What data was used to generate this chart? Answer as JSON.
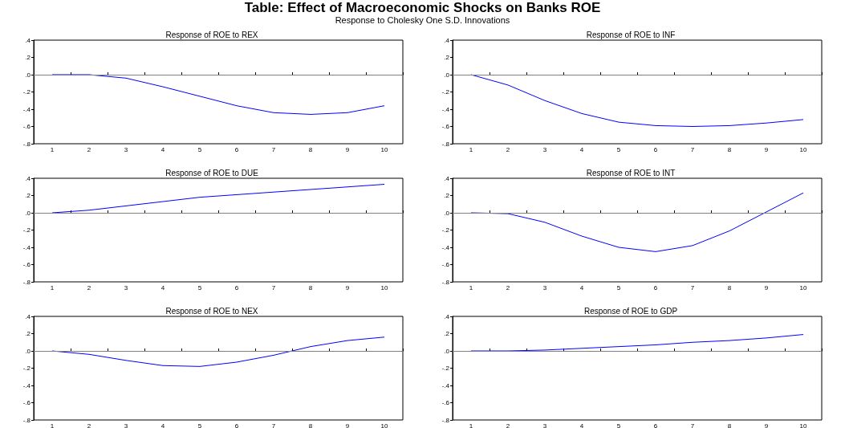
{
  "chart_data": [
    {
      "type": "other",
      "title": "Table: Effect of Macroeconomic Shocks on Banks ROE",
      "subtitle": "Response to Cholesky One S.D. Innovations"
    },
    {
      "type": "line",
      "title": "Response of ROE to REX",
      "categories": [
        "1",
        "2",
        "3",
        "4",
        "5",
        "6",
        "7",
        "8",
        "9",
        "10"
      ],
      "series": [
        {
          "color": "#0000ff",
          "values": [
            0,
            0,
            -0.04,
            -0.14,
            -0.25,
            -0.36,
            -0.44,
            -0.46,
            -0.44,
            -0.36
          ]
        }
      ],
      "ylim": [
        -0.8,
        0.4
      ],
      "yticks": [
        {
          "value": -0.8,
          "label": "-.8"
        },
        {
          "value": -0.6,
          "label": "-.6"
        },
        {
          "value": -0.4,
          "label": "-.4"
        },
        {
          "value": -0.2,
          "label": "-.2"
        },
        {
          "value": 0,
          "label": ".0"
        },
        {
          "value": 0.2,
          "label": ".2"
        },
        {
          "value": 0.4,
          "label": ".4"
        }
      ],
      "ref_lines": [
        {
          "axis": "y",
          "value": 0,
          "color": "#808080"
        }
      ]
    },
    {
      "type": "line",
      "title": "Response of ROE to INF",
      "categories": [
        "1",
        "2",
        "3",
        "4",
        "5",
        "6",
        "7",
        "8",
        "9",
        "10"
      ],
      "series": [
        {
          "color": "#0000ff",
          "values": [
            0,
            -0.12,
            -0.3,
            -0.45,
            -0.55,
            -0.59,
            -0.6,
            -0.59,
            -0.56,
            -0.52
          ]
        }
      ],
      "ylim": [
        -0.8,
        0.4
      ],
      "yticks": [
        {
          "value": -0.8,
          "label": "-.8"
        },
        {
          "value": -0.6,
          "label": "-.6"
        },
        {
          "value": -0.4,
          "label": "-.4"
        },
        {
          "value": -0.2,
          "label": "-.2"
        },
        {
          "value": 0,
          "label": ".0"
        },
        {
          "value": 0.2,
          "label": ".2"
        },
        {
          "value": 0.4,
          "label": ".4"
        }
      ],
      "ref_lines": [
        {
          "axis": "y",
          "value": 0,
          "color": "#808080"
        }
      ]
    },
    {
      "type": "line",
      "title": "Response of ROE to DUE",
      "categories": [
        "1",
        "2",
        "3",
        "4",
        "5",
        "6",
        "7",
        "8",
        "9",
        "10"
      ],
      "series": [
        {
          "color": "#0000ff",
          "values": [
            0,
            0.03,
            0.08,
            0.13,
            0.18,
            0.21,
            0.24,
            0.27,
            0.3,
            0.33
          ]
        }
      ],
      "ylim": [
        -0.8,
        0.4
      ],
      "yticks": [
        {
          "value": -0.8,
          "label": "-.8"
        },
        {
          "value": -0.6,
          "label": "-.6"
        },
        {
          "value": -0.4,
          "label": "-.4"
        },
        {
          "value": -0.2,
          "label": "-.2"
        },
        {
          "value": 0,
          "label": ".0"
        },
        {
          "value": 0.2,
          "label": ".2"
        },
        {
          "value": 0.4,
          "label": ".4"
        }
      ],
      "ref_lines": [
        {
          "axis": "y",
          "value": 0,
          "color": "#808080"
        }
      ]
    },
    {
      "type": "line",
      "title": "Response of ROE to INT",
      "categories": [
        "1",
        "2",
        "3",
        "4",
        "5",
        "6",
        "7",
        "8",
        "9",
        "10"
      ],
      "series": [
        {
          "color": "#0000ff",
          "values": [
            0,
            -0.01,
            -0.11,
            -0.27,
            -0.4,
            -0.45,
            -0.38,
            -0.21,
            0.01,
            0.23
          ]
        }
      ],
      "ylim": [
        -0.8,
        0.4
      ],
      "yticks": [
        {
          "value": -0.8,
          "label": "-.8"
        },
        {
          "value": -0.6,
          "label": "-.6"
        },
        {
          "value": -0.4,
          "label": "-.4"
        },
        {
          "value": -0.2,
          "label": "-.2"
        },
        {
          "value": 0,
          "label": ".0"
        },
        {
          "value": 0.2,
          "label": ".2"
        },
        {
          "value": 0.4,
          "label": ".4"
        }
      ],
      "ref_lines": [
        {
          "axis": "y",
          "value": 0,
          "color": "#808080"
        }
      ]
    },
    {
      "type": "line",
      "title": "Response of ROE to NEX",
      "categories": [
        "1",
        "2",
        "3",
        "4",
        "5",
        "6",
        "7",
        "8",
        "9",
        "10"
      ],
      "series": [
        {
          "color": "#0000ff",
          "values": [
            0,
            -0.04,
            -0.11,
            -0.17,
            -0.18,
            -0.13,
            -0.05,
            0.05,
            0.12,
            0.16
          ]
        }
      ],
      "ylim": [
        -0.8,
        0.4
      ],
      "yticks": [
        {
          "value": -0.8,
          "label": "-.8"
        },
        {
          "value": -0.6,
          "label": "-.6"
        },
        {
          "value": -0.4,
          "label": "-.4"
        },
        {
          "value": -0.2,
          "label": "-.2"
        },
        {
          "value": 0,
          "label": ".0"
        },
        {
          "value": 0.2,
          "label": ".2"
        },
        {
          "value": 0.4,
          "label": ".4"
        }
      ],
      "ref_lines": [
        {
          "axis": "y",
          "value": 0,
          "color": "#808080"
        }
      ]
    },
    {
      "type": "line",
      "title": "Response of ROE to GDP",
      "categories": [
        "1",
        "2",
        "3",
        "4",
        "5",
        "6",
        "7",
        "8",
        "9",
        "10"
      ],
      "series": [
        {
          "color": "#0000ff",
          "values": [
            0,
            0,
            0.01,
            0.03,
            0.05,
            0.07,
            0.1,
            0.12,
            0.15,
            0.19
          ]
        }
      ],
      "ylim": [
        -0.8,
        0.4
      ],
      "yticks": [
        {
          "value": -0.8,
          "label": "-.8"
        },
        {
          "value": -0.6,
          "label": "-.6"
        },
        {
          "value": -0.4,
          "label": "-.4"
        },
        {
          "value": -0.2,
          "label": "-.2"
        },
        {
          "value": 0,
          "label": ".0"
        },
        {
          "value": 0.2,
          "label": ".2"
        },
        {
          "value": 0.4,
          "label": ".4"
        }
      ],
      "ref_lines": [
        {
          "axis": "y",
          "value": 0,
          "color": "#808080"
        }
      ]
    }
  ]
}
